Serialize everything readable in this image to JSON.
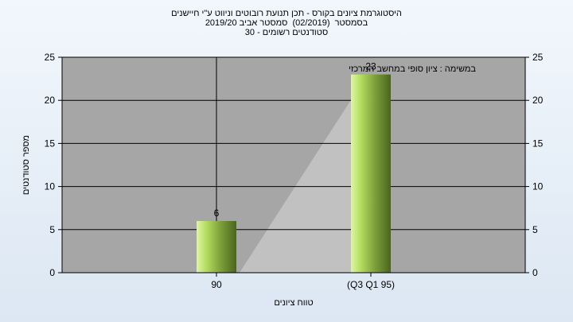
{
  "chart_data": {
    "type": "bar",
    "title_lines": [
      "היסטוגרמת ציונים בקורס - תכן תנועת רובוטים וניווט ע\"י חיישנים",
      "בסמסטר  (02/2019)  סמסטר אביב 2019/20",
      "סטודנטים רשומים - 30"
    ],
    "categories": [
      "90",
      "(Q3 Q1 95)"
    ],
    "values": [
      6,
      23
    ],
    "data_labels": [
      "6",
      "23"
    ],
    "xlabel": "טווח ציונים",
    "ylabel": "מספר סטודנטים",
    "ylim": [
      0,
      25
    ],
    "yticks": [
      "0",
      "5",
      "10",
      "15",
      "20",
      "25"
    ],
    "annotation": "במשימה : ציון סופי במחשב המרכזי",
    "grid": true,
    "colors": {
      "plot_bg": "#a6a6a6",
      "wedge": "#c1c1c1",
      "bar_light": "#c8ec80",
      "bar_dark": "#4f6a1e"
    }
  }
}
